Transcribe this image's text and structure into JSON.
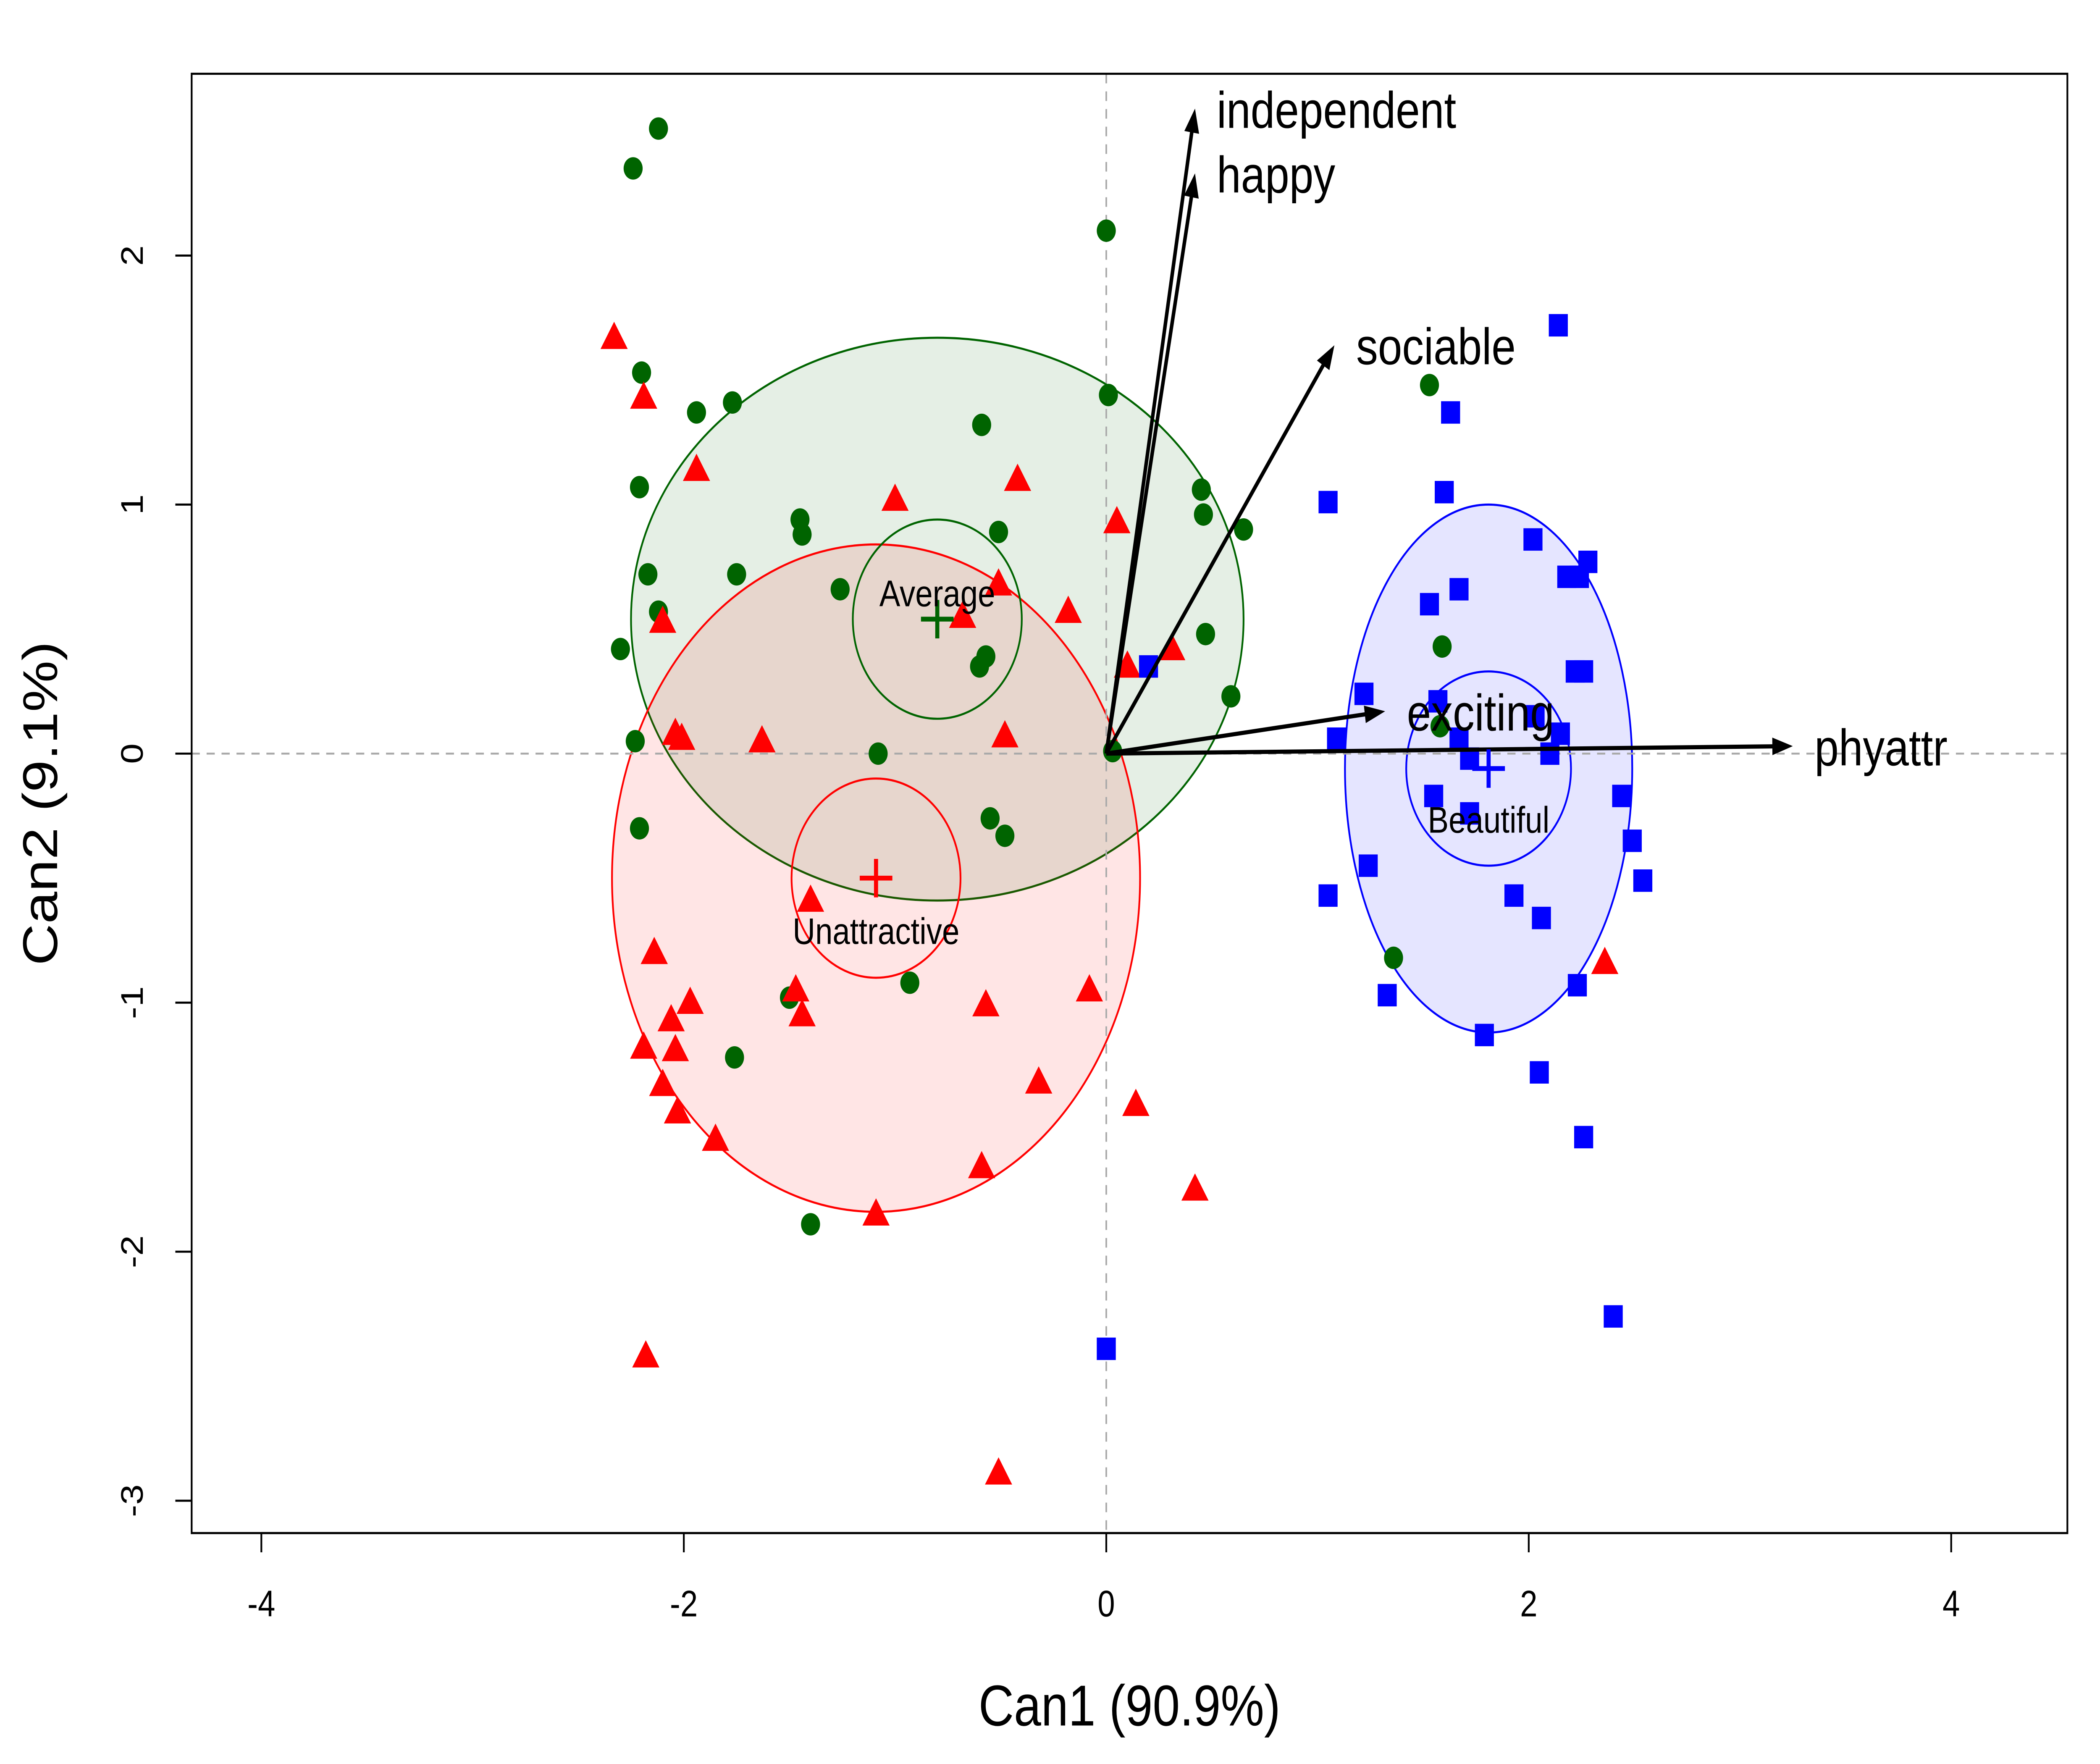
{
  "chart_data": {
    "type": "scatter",
    "title": "",
    "xlabel": "Can1 (90.9%)",
    "ylabel": "Can2 (9.1%)",
    "xlim": [
      -4.33,
      4.55
    ],
    "ylim": [
      -3.13,
      2.73
    ],
    "xticks": [
      -4,
      -2,
      0,
      2,
      4
    ],
    "yticks": [
      -3,
      -2,
      -1,
      0,
      1,
      2
    ],
    "xtick_labels": [
      "-4",
      "-2",
      "0",
      "2",
      "4"
    ],
    "ytick_labels": [
      "-3",
      "-2",
      "-1",
      "0",
      "1",
      "2"
    ],
    "reference_lines": {
      "x": 0,
      "y": 0,
      "style": "dashed"
    },
    "groups": [
      {
        "name": "Average",
        "color": "#006400",
        "fill": "#006400",
        "marker": "circle",
        "centroid": [
          -0.8,
          0.54
        ],
        "ellipse": {
          "rx": 1.45,
          "ry": 1.13
        },
        "circle_radius": 0.4,
        "points": [
          [
            -2.12,
            2.51
          ],
          [
            -2.24,
            2.35
          ],
          [
            0.0,
            2.1
          ],
          [
            -2.2,
            1.53
          ],
          [
            -1.77,
            1.41
          ],
          [
            -1.94,
            1.37
          ],
          [
            0.01,
            1.44
          ],
          [
            1.53,
            1.48
          ],
          [
            -0.59,
            1.32
          ],
          [
            -2.21,
            1.07
          ],
          [
            0.45,
            1.06
          ],
          [
            -1.45,
            0.94
          ],
          [
            -1.44,
            0.88
          ],
          [
            -0.51,
            0.89
          ],
          [
            0.46,
            0.96
          ],
          [
            0.65,
            0.9
          ],
          [
            -2.17,
            0.72
          ],
          [
            -1.75,
            0.72
          ],
          [
            -1.26,
            0.66
          ],
          [
            -2.12,
            0.57
          ],
          [
            -2.3,
            0.42
          ],
          [
            -0.57,
            0.39
          ],
          [
            -0.6,
            0.35
          ],
          [
            0.47,
            0.48
          ],
          [
            0.59,
            0.23
          ],
          [
            1.59,
            0.43
          ],
          [
            -2.23,
            0.05
          ],
          [
            -1.08,
            0.0
          ],
          [
            0.03,
            0.01
          ],
          [
            1.58,
            0.11
          ],
          [
            -2.21,
            -0.3
          ],
          [
            -0.55,
            -0.26
          ],
          [
            -0.48,
            -0.33
          ],
          [
            -1.5,
            -0.98
          ],
          [
            -0.93,
            -0.92
          ],
          [
            -1.76,
            -1.22
          ],
          [
            -1.4,
            -1.89
          ],
          [
            1.36,
            -0.82
          ]
        ]
      },
      {
        "name": "Unattractive",
        "color": "#ff0000",
        "fill": "#ff0000",
        "marker": "triangle",
        "centroid": [
          -1.09,
          -0.5
        ],
        "ellipse": {
          "rx": 1.25,
          "ry": 1.34
        },
        "circle_radius": 0.4,
        "points": [
          [
            -2.33,
            1.67
          ],
          [
            -2.19,
            1.43
          ],
          [
            -1.94,
            1.14
          ],
          [
            -1.0,
            1.02
          ],
          [
            -0.42,
            1.1
          ],
          [
            0.05,
            0.93
          ],
          [
            -2.1,
            0.53
          ],
          [
            -0.68,
            0.55
          ],
          [
            -0.51,
            0.68
          ],
          [
            -0.18,
            0.57
          ],
          [
            0.1,
            0.35
          ],
          [
            0.31,
            0.42
          ],
          [
            -2.04,
            0.08
          ],
          [
            -2.01,
            0.06
          ],
          [
            -1.63,
            0.05
          ],
          [
            -0.48,
            0.07
          ],
          [
            -1.4,
            -0.59
          ],
          [
            -2.14,
            -0.8
          ],
          [
            -1.47,
            -0.95
          ],
          [
            -1.44,
            -1.05
          ],
          [
            -1.97,
            -1.0
          ],
          [
            -2.06,
            -1.07
          ],
          [
            -2.19,
            -1.18
          ],
          [
            -2.04,
            -1.19
          ],
          [
            -2.1,
            -1.33
          ],
          [
            -2.03,
            -1.44
          ],
          [
            -1.85,
            -1.55
          ],
          [
            -0.57,
            -1.01
          ],
          [
            -0.08,
            -0.95
          ],
          [
            -0.32,
            -1.32
          ],
          [
            0.14,
            -1.41
          ],
          [
            -0.59,
            -1.66
          ],
          [
            -1.09,
            -1.85
          ],
          [
            0.42,
            -1.75
          ],
          [
            -2.18,
            -2.42
          ],
          [
            -0.51,
            -2.89
          ],
          [
            2.36,
            -0.84
          ]
        ]
      },
      {
        "name": "Beautiful",
        "color": "#0000ff",
        "fill": "#0000ff",
        "marker": "square",
        "centroid": [
          1.81,
          -0.06
        ],
        "ellipse": {
          "rx": 0.68,
          "ry": 1.06
        },
        "circle_radius": 0.39,
        "points": [
          [
            2.14,
            1.72
          ],
          [
            1.63,
            1.37
          ],
          [
            1.6,
            1.05
          ],
          [
            1.05,
            1.01
          ],
          [
            2.02,
            0.86
          ],
          [
            2.28,
            0.77
          ],
          [
            2.18,
            0.71
          ],
          [
            2.24,
            0.71
          ],
          [
            1.67,
            0.66
          ],
          [
            1.53,
            0.6
          ],
          [
            0.2,
            0.35
          ],
          [
            2.22,
            0.33
          ],
          [
            2.26,
            0.33
          ],
          [
            1.22,
            0.24
          ],
          [
            1.57,
            0.21
          ],
          [
            2.03,
            0.15
          ],
          [
            1.09,
            0.06
          ],
          [
            1.67,
            0.06
          ],
          [
            2.15,
            0.08
          ],
          [
            1.72,
            -0.02
          ],
          [
            2.1,
            0.0
          ],
          [
            1.55,
            -0.17
          ],
          [
            1.72,
            -0.24
          ],
          [
            2.44,
            -0.17
          ],
          [
            2.49,
            -0.35
          ],
          [
            2.54,
            -0.51
          ],
          [
            1.05,
            -0.57
          ],
          [
            1.24,
            -0.45
          ],
          [
            1.93,
            -0.57
          ],
          [
            2.06,
            -0.66
          ],
          [
            1.33,
            -0.97
          ],
          [
            2.23,
            -0.93
          ],
          [
            1.79,
            -1.13
          ],
          [
            2.05,
            -1.28
          ],
          [
            2.26,
            -1.54
          ],
          [
            2.4,
            -2.26
          ],
          [
            0.0,
            -2.39
          ]
        ]
      }
    ],
    "vectors": [
      {
        "name": "independent",
        "x": 0.42,
        "y": 2.59
      },
      {
        "name": "happy",
        "x": 0.42,
        "y": 2.33
      },
      {
        "name": "sociable",
        "x": 1.08,
        "y": 1.64
      },
      {
        "name": "exciting",
        "x": 1.32,
        "y": 0.17
      },
      {
        "name": "phyattr",
        "x": 3.25,
        "y": 0.03
      }
    ]
  }
}
